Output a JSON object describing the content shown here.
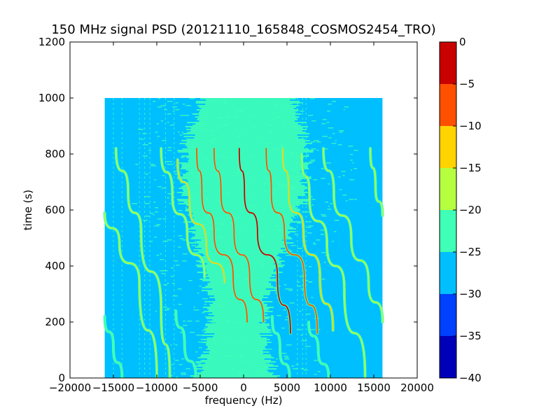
{
  "chart_data": {
    "type": "heatmap",
    "title": "150 MHz signal PSD (20121110_165848_COSMOS2454_TRO)",
    "xlabel": "frequency (Hz)",
    "ylabel": "time (s)",
    "xlim": [
      -20000,
      20000
    ],
    "ylim": [
      0,
      1200
    ],
    "x_ticks": [
      -20000,
      -15000,
      -10000,
      -5000,
      0,
      5000,
      10000,
      15000,
      20000
    ],
    "x_tick_labels": [
      "−20000",
      "−15000",
      "−10000",
      "−5000",
      "0",
      "5000",
      "10000",
      "15000",
      "20000"
    ],
    "y_ticks": [
      0,
      200,
      400,
      600,
      800,
      1000,
      1200
    ],
    "y_tick_labels": [
      "0",
      "200",
      "400",
      "600",
      "800",
      "1000",
      "1200"
    ],
    "data_extent": {
      "x": [
        -16000,
        16000
      ],
      "y": [
        0,
        1000
      ]
    },
    "colorbar": {
      "levels": [
        -40,
        -35,
        -30,
        -25,
        -20,
        -15,
        -10,
        -5,
        0
      ],
      "tick_labels": [
        "−40",
        "−35",
        "−30",
        "−25",
        "−20",
        "−15",
        "−10",
        "−5",
        "0"
      ],
      "colors": [
        "#0000b8",
        "#0040ff",
        "#00bfff",
        "#40ffb6",
        "#b6ff40",
        "#ffd300",
        "#ff5000",
        "#c80000"
      ]
    },
    "background_level_color": "#00bfff",
    "noise_band_color": "#40ffb6",
    "traces": [
      {
        "x": [
          -16000,
          -14300,
          -12000,
          -10000
        ],
        "y": [
          590,
          480,
          340,
          0
        ],
        "peak_color": "#b6ff40"
      },
      {
        "x": [
          -14700,
          -13300,
          -11800,
          -9500,
          -8500
        ],
        "y": [
          820,
          660,
          520,
          240,
          0
        ],
        "peak_color": "#b6ff40"
      },
      {
        "x": [
          -9500,
          -8200,
          -6500,
          -4500
        ],
        "y": [
          820,
          650,
          520,
          360
        ],
        "peak_color": "#b6ff40"
      },
      {
        "x": [
          -7600,
          -6200,
          -4300,
          -2200
        ],
        "y": [
          780,
          620,
          480,
          340
        ],
        "peak_color": "#ffd300"
      },
      {
        "x": [
          -5400,
          -4800,
          -3400,
          -1200,
          400
        ],
        "y": [
          820,
          660,
          520,
          360,
          200
        ],
        "peak_color": "#ff5000"
      },
      {
        "x": [
          -3400,
          -2600,
          -1100,
          700,
          2300
        ],
        "y": [
          820,
          660,
          520,
          360,
          200
        ],
        "peak_color": "#ff5000"
      },
      {
        "x": [
          -500,
          100,
          1600,
          3900,
          5400
        ],
        "y": [
          820,
          660,
          520,
          360,
          160
        ],
        "peak_color": "#c80000"
      },
      {
        "x": [
          2600,
          3200,
          4700,
          7000,
          8500
        ],
        "y": [
          820,
          660,
          520,
          360,
          160
        ],
        "peak_color": "#ff5000"
      },
      {
        "x": [
          4500,
          5200,
          6900,
          8800,
          10300
        ],
        "y": [
          820,
          660,
          520,
          360,
          170
        ],
        "peak_color": "#ffd300"
      },
      {
        "x": [
          6700,
          7600,
          9600,
          11600,
          14000
        ],
        "y": [
          800,
          640,
          480,
          320,
          0
        ],
        "peak_color": "#b6ff40"
      },
      {
        "x": [
          9200,
          10400,
          12400,
          14400,
          16000
        ],
        "y": [
          820,
          660,
          500,
          340,
          200
        ],
        "peak_color": "#b6ff40"
      },
      {
        "x": [
          14600,
          15200,
          16000
        ],
        "y": [
          820,
          680,
          580
        ],
        "peak_color": "#b6ff40"
      },
      {
        "x": [
          -16000,
          -15000,
          -14000
        ],
        "y": [
          220,
          110,
          0
        ],
        "peak_color": "#40ffb6"
      },
      {
        "x": [
          -7800,
          -6800,
          -5500
        ],
        "y": [
          240,
          120,
          0
        ],
        "peak_color": "#40ffb6"
      },
      {
        "x": [
          3300,
          4200,
          5300
        ],
        "y": [
          220,
          100,
          0
        ],
        "peak_color": "#40ffb6"
      },
      {
        "x": [
          7500,
          8600,
          9800
        ],
        "y": [
          200,
          100,
          0
        ],
        "peak_color": "#40ffb6"
      }
    ]
  }
}
